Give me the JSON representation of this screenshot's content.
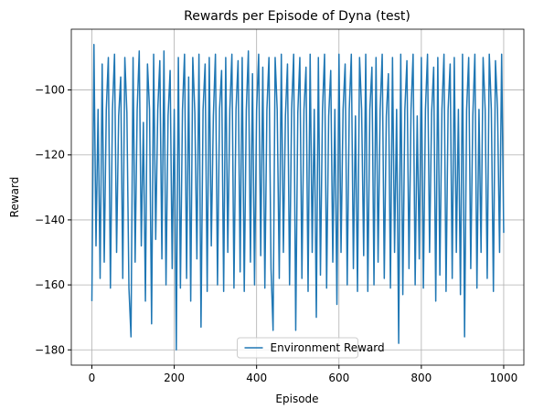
{
  "chart_data": {
    "type": "line",
    "title": "Rewards per Episode of Dyna (test)",
    "x_label": "Episode",
    "y_label": "Reward",
    "x": [
      0,
      5,
      10,
      15,
      20,
      25,
      30,
      35,
      40,
      45,
      50,
      55,
      60,
      65,
      70,
      75,
      80,
      85,
      90,
      95,
      100,
      105,
      110,
      115,
      120,
      125,
      130,
      135,
      140,
      145,
      150,
      155,
      160,
      165,
      170,
      175,
      180,
      185,
      190,
      195,
      200,
      205,
      210,
      215,
      220,
      225,
      230,
      235,
      240,
      245,
      250,
      255,
      260,
      265,
      270,
      275,
      280,
      285,
      290,
      295,
      300,
      305,
      310,
      315,
      320,
      325,
      330,
      335,
      340,
      345,
      350,
      355,
      360,
      365,
      370,
      375,
      380,
      385,
      390,
      395,
      400,
      405,
      410,
      415,
      420,
      425,
      430,
      435,
      440,
      445,
      450,
      455,
      460,
      465,
      470,
      475,
      480,
      485,
      490,
      495,
      500,
      505,
      510,
      515,
      520,
      525,
      530,
      535,
      540,
      545,
      550,
      555,
      560,
      565,
      570,
      575,
      580,
      585,
      590,
      595,
      600,
      605,
      610,
      615,
      620,
      625,
      630,
      635,
      640,
      645,
      650,
      655,
      660,
      665,
      670,
      675,
      680,
      685,
      690,
      695,
      700,
      705,
      710,
      715,
      720,
      725,
      730,
      735,
      740,
      745,
      750,
      755,
      760,
      765,
      770,
      775,
      780,
      785,
      790,
      795,
      800,
      805,
      810,
      815,
      820,
      825,
      830,
      835,
      840,
      845,
      850,
      855,
      860,
      865,
      870,
      875,
      880,
      885,
      890,
      895,
      900,
      905,
      910,
      915,
      920,
      925,
      930,
      935,
      940,
      945,
      950,
      955,
      960,
      965,
      970,
      975,
      980,
      985,
      990,
      995,
      1000
    ],
    "series": [
      {
        "name": "Environment Reward",
        "color": "#1f77b4",
        "values": [
          -165,
          -86,
          -148,
          -106,
          -158,
          -92,
          -153,
          -106,
          -90,
          -161,
          -106,
          -89,
          -150,
          -108,
          -96,
          -158,
          -90,
          -107,
          -161,
          -176,
          -90,
          -153,
          -106,
          -88,
          -148,
          -110,
          -165,
          -92,
          -106,
          -172,
          -89,
          -146,
          -106,
          -91,
          -152,
          -88,
          -160,
          -108,
          -94,
          -155,
          -106,
          -180,
          -90,
          -161,
          -106,
          -89,
          -158,
          -96,
          -165,
          -90,
          -107,
          -152,
          -89,
          -173,
          -106,
          -92,
          -162,
          -90,
          -148,
          -108,
          -89,
          -160,
          -106,
          -94,
          -162,
          -90,
          -150,
          -106,
          -89,
          -161,
          -106,
          -91,
          -156,
          -90,
          -162,
          -106,
          -88,
          -153,
          -95,
          -160,
          -106,
          -89,
          -151,
          -93,
          -161,
          -106,
          -90,
          -155,
          -174,
          -90,
          -106,
          -158,
          -89,
          -150,
          -108,
          -92,
          -160,
          -106,
          -89,
          -174,
          -107,
          -90,
          -158,
          -106,
          -93,
          -162,
          -89,
          -150,
          -106,
          -170,
          -90,
          -157,
          -106,
          -89,
          -161,
          -108,
          -94,
          -153,
          -106,
          -166,
          -89,
          -150,
          -106,
          -92,
          -160,
          -106,
          -89,
          -155,
          -108,
          -162,
          -90,
          -106,
          -151,
          -89,
          -162,
          -106,
          -93,
          -160,
          -90,
          -153,
          -106,
          -89,
          -158,
          -108,
          -95,
          -161,
          -90,
          -150,
          -106,
          -178,
          -89,
          -163,
          -106,
          -91,
          -155,
          -106,
          -89,
          -160,
          -108,
          -152,
          -90,
          -161,
          -106,
          -89,
          -150,
          -107,
          -93,
          -165,
          -90,
          -157,
          -106,
          -89,
          -162,
          -106,
          -92,
          -158,
          -90,
          -150,
          -106,
          -163,
          -89,
          -176,
          -106,
          -90,
          -155,
          -108,
          -89,
          -161,
          -106,
          -150,
          -90,
          -106,
          -158,
          -89,
          -106,
          -162,
          -91,
          -106,
          -150,
          -89,
          -144
        ]
      }
    ],
    "xlim": [
      -49.95,
      1048.95
    ],
    "ylim": [
      -184.7,
      -81.3
    ],
    "xticks": [
      0,
      200,
      400,
      600,
      800,
      1000
    ],
    "yticks": [
      {
        "value": -180,
        "label": "−180"
      },
      {
        "value": -160,
        "label": "−160"
      },
      {
        "value": -140,
        "label": "−140"
      },
      {
        "value": -120,
        "label": "−120"
      },
      {
        "value": -100,
        "label": "−100"
      }
    ],
    "grid": true,
    "legend": "lower center"
  }
}
